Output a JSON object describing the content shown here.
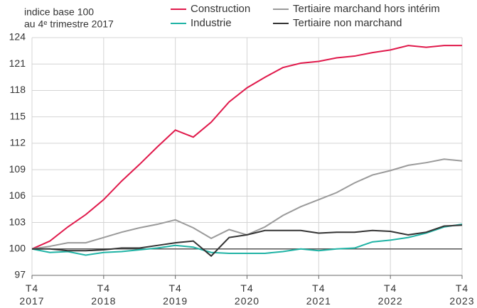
{
  "chart_data": {
    "type": "line",
    "y_label": [
      "indice base 100",
      "au 4ᵉ trimestre 2017"
    ],
    "categories": [
      "T4\n2017",
      null,
      null,
      null,
      "T4\n2018",
      null,
      null,
      null,
      "T4\n2019",
      null,
      null,
      null,
      "T4\n2020",
      null,
      null,
      null,
      "T4\n2021",
      null,
      null,
      null,
      "T4\n2022",
      null,
      null,
      null,
      "T4\n2023"
    ],
    "series": [
      {
        "name": "Construction",
        "color": "#e0194b",
        "values": [
          100,
          100.9,
          102.5,
          103.9,
          105.6,
          107.7,
          109.6,
          111.6,
          113.5,
          112.7,
          114.4,
          116.7,
          118.3,
          119.5,
          120.6,
          121.1,
          121.3,
          121.7,
          121.9,
          122.3,
          122.6,
          123.1,
          122.9,
          123.1,
          123.1
        ]
      },
      {
        "name": "Industrie",
        "color": "#1fb3a5",
        "values": [
          100,
          99.6,
          99.7,
          99.3,
          99.6,
          99.7,
          99.9,
          100.1,
          100.4,
          100.2,
          99.6,
          99.5,
          99.5,
          99.5,
          99.7,
          100,
          99.8,
          100,
          100.1,
          100.8,
          101,
          101.3,
          101.8,
          102.5,
          102.8
        ]
      },
      {
        "name": "Tertiaire marchand hors intérim",
        "color": "#9a9a9a",
        "values": [
          100,
          100.3,
          100.7,
          100.7,
          101.3,
          101.9,
          102.4,
          102.8,
          103.3,
          102.4,
          101.2,
          102.2,
          101.6,
          102.5,
          103.8,
          104.8,
          105.6,
          106.4,
          107.5,
          108.4,
          108.9,
          109.5,
          109.8,
          110.2,
          110.0
        ]
      },
      {
        "name": "Tertiaire non marchand",
        "color": "#333333",
        "values": [
          100,
          100,
          99.8,
          99.8,
          99.9,
          100.1,
          100.1,
          100.4,
          100.7,
          100.9,
          99.2,
          101.3,
          101.6,
          102.1,
          102.1,
          102.1,
          101.8,
          101.9,
          101.9,
          102.1,
          102,
          101.6,
          101.9,
          102.6,
          102.7
        ]
      }
    ],
    "ylim": [
      97,
      124
    ],
    "yticks": [
      97,
      100,
      103,
      106,
      109,
      112,
      115,
      118,
      121,
      124
    ],
    "reference_line": 100,
    "grid": true
  }
}
